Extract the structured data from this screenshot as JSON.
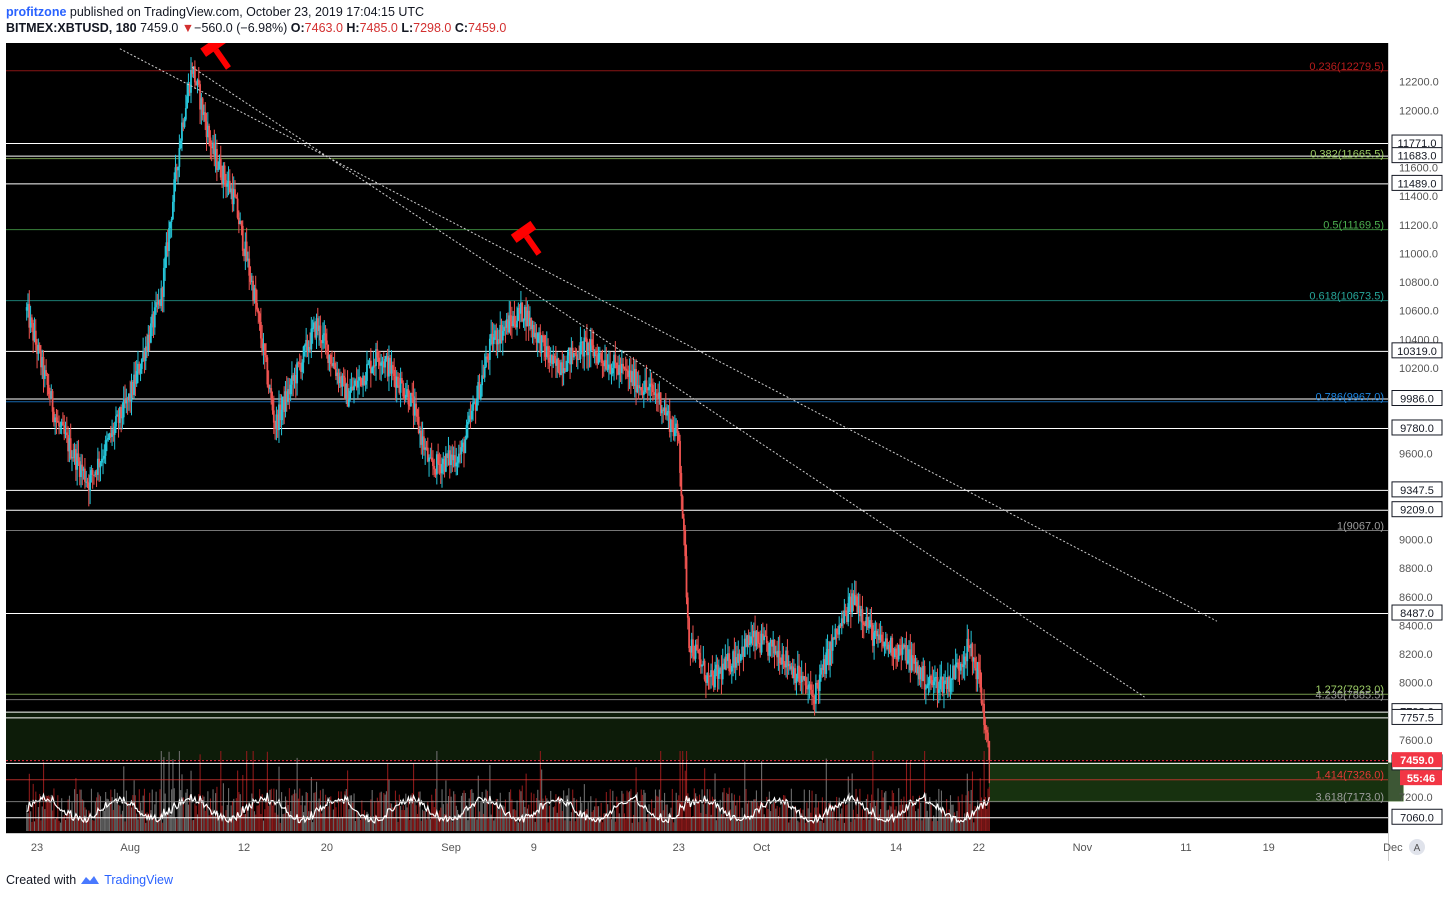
{
  "header": {
    "author": "profitzone",
    "published_text": "published on TradingView.com, October 23, 2019 17:04:15 UTC",
    "symbol": "BITMEX:XBTUSD, 180",
    "last_price": "7459.0",
    "change_arrow": "▼",
    "change": "−560.0 (−6.98%)",
    "o_label": "O:",
    "o_value": "7463.0",
    "h_label": "H:",
    "h_value": "7485.0",
    "l_label": "L:",
    "l_value": "7298.0",
    "c_label": "C:",
    "c_value": "7459.0"
  },
  "footer": {
    "created_text": "Created with",
    "brand": "TradingView"
  },
  "colors": {
    "background": "#000000",
    "up": "#26c6da",
    "down": "#ef5350",
    "volume_up": "#6b6b6b",
    "volume_down": "#8b1a1a",
    "level": "#ffffff",
    "trendline": "#d0d0d0",
    "marker": "#ff0000",
    "target_zone": "#1b3a12",
    "price_label_bg": "#f23645"
  },
  "chart_data": {
    "type": "candlestick",
    "interval": "180",
    "symbol": "BITMEX:XBTUSD",
    "y_ticks": [
      12200,
      12000,
      11800,
      11600,
      11400,
      11200,
      11000,
      10800,
      10600,
      10400,
      10200,
      10000,
      9800,
      9600,
      9400,
      9200,
      9000,
      8800,
      8600,
      8400,
      8200,
      8000,
      7800,
      7600,
      7400,
      7200,
      7000
    ],
    "ylim": [
      6950,
      12470
    ],
    "x_axis_labels": [
      {
        "label": "23",
        "date": "2019-07-23"
      },
      {
        "label": "Aug",
        "date": "2019-08-01"
      },
      {
        "label": "12",
        "date": "2019-08-12"
      },
      {
        "label": "20",
        "date": "2019-08-20"
      },
      {
        "label": "Sep",
        "date": "2019-09-01"
      },
      {
        "label": "9",
        "date": "2019-09-09"
      },
      {
        "label": "23",
        "date": "2019-09-23"
      },
      {
        "label": "Oct",
        "date": "2019-10-01"
      },
      {
        "label": "14",
        "date": "2019-10-14"
      },
      {
        "label": "22",
        "date": "2019-10-22"
      },
      {
        "label": "Nov",
        "date": "2019-11-01"
      },
      {
        "label": "11",
        "date": "2019-11-11"
      },
      {
        "label": "19",
        "date": "2019-11-19"
      },
      {
        "label": "Dec",
        "date": "2019-12-01"
      }
    ],
    "price_path": [
      {
        "date": "2019-07-22",
        "price": 10600
      },
      {
        "date": "2019-07-25",
        "price": 9800
      },
      {
        "date": "2019-07-28",
        "price": 9400
      },
      {
        "date": "2019-08-01",
        "price": 10000
      },
      {
        "date": "2019-08-04",
        "price": 10700
      },
      {
        "date": "2019-08-06",
        "price": 11900
      },
      {
        "date": "2019-08-07",
        "price": 12300
      },
      {
        "date": "2019-08-09",
        "price": 11700
      },
      {
        "date": "2019-08-11",
        "price": 11400
      },
      {
        "date": "2019-08-13",
        "price": 10700
      },
      {
        "date": "2019-08-15",
        "price": 9800
      },
      {
        "date": "2019-08-19",
        "price": 10500
      },
      {
        "date": "2019-08-22",
        "price": 10000
      },
      {
        "date": "2019-08-25",
        "price": 10300
      },
      {
        "date": "2019-08-28",
        "price": 10000
      },
      {
        "date": "2019-08-30",
        "price": 9500
      },
      {
        "date": "2019-09-02",
        "price": 9600
      },
      {
        "date": "2019-09-05",
        "price": 10400
      },
      {
        "date": "2019-09-08",
        "price": 10600
      },
      {
        "date": "2019-09-11",
        "price": 10200
      },
      {
        "date": "2019-09-14",
        "price": 10350
      },
      {
        "date": "2019-09-18",
        "price": 10150
      },
      {
        "date": "2019-09-21",
        "price": 10000
      },
      {
        "date": "2019-09-23",
        "price": 9700
      },
      {
        "date": "2019-09-24",
        "price": 8300
      },
      {
        "date": "2019-09-26",
        "price": 8000
      },
      {
        "date": "2019-09-30",
        "price": 8300
      },
      {
        "date": "2019-10-03",
        "price": 8200
      },
      {
        "date": "2019-10-06",
        "price": 7900
      },
      {
        "date": "2019-10-08",
        "price": 8300
      },
      {
        "date": "2019-10-10",
        "price": 8600
      },
      {
        "date": "2019-10-12",
        "price": 8300
      },
      {
        "date": "2019-10-15",
        "price": 8200
      },
      {
        "date": "2019-10-17",
        "price": 8000
      },
      {
        "date": "2019-10-19",
        "price": 8000
      },
      {
        "date": "2019-10-21",
        "price": 8250
      },
      {
        "date": "2019-10-22",
        "price": 8050
      },
      {
        "date": "2019-10-23",
        "price": 7459
      }
    ],
    "last_price": 7459.0,
    "last_price_label": "7459.0",
    "countdown": "55:46",
    "horizontal_levels": [
      {
        "price": 11771.0,
        "label": "11771.0"
      },
      {
        "price": 11683.0,
        "label": "11683.0"
      },
      {
        "price": 11489.0,
        "label": "11489.0"
      },
      {
        "price": 10319.0,
        "label": "10319.0"
      },
      {
        "price": 9986.0,
        "label": "9986.0"
      },
      {
        "price": 9780.0,
        "label": "9780.0"
      },
      {
        "price": 9347.5,
        "label": "9347.5"
      },
      {
        "price": 9209.0,
        "label": "9209.0"
      },
      {
        "price": 8487.0,
        "label": "8487.0"
      },
      {
        "price": 7798.0,
        "label": "7798.0"
      },
      {
        "price": 7757.5,
        "label": "7757.5"
      },
      {
        "price": 7440.0,
        "label": "7440.0"
      },
      {
        "price": 7060.0,
        "label": "7060.0"
      }
    ],
    "fib_levels": [
      {
        "ratio": "0.236",
        "price": 12279.5,
        "label": "0.236(12279.5)",
        "color": "#b71c1c"
      },
      {
        "ratio": "0.382",
        "price": 11665.5,
        "label": "0.382(11665.5)",
        "color": "#9ccc65"
      },
      {
        "ratio": "0.5",
        "price": 11169.5,
        "label": "0.5(11169.5)",
        "color": "#4caf50"
      },
      {
        "ratio": "0.618",
        "price": 10673.5,
        "label": "0.618(10673.5)",
        "color": "#26a69a"
      },
      {
        "ratio": "0.786",
        "price": 9967.0,
        "label": "0.786(9967.0)",
        "color": "#1e88e5"
      },
      {
        "ratio": "1",
        "price": 9067.0,
        "label": "1(9067.0)",
        "color": "#9e9e9e"
      },
      {
        "ratio": "1.272",
        "price": 7923.0,
        "label": "1.272(7923.0)",
        "color": "#9ccc65"
      },
      {
        "ratio": "4.236",
        "price": 7885.5,
        "label": "4.236(7885.5)",
        "color": "#9e9e9e"
      },
      {
        "ratio": "1.414",
        "price": 7326.0,
        "label": "1.414(7326.0)",
        "color": "#e53935"
      },
      {
        "ratio": "3.618",
        "price": 7173.0,
        "label": "3.618(7173.0)",
        "color": "#9e9e9e"
      }
    ],
    "trendlines": [
      {
        "start": {
          "date": "2019-07-31",
          "price": 12430
        },
        "end": {
          "date": "2019-11-14",
          "price": 8430
        }
      },
      {
        "start": {
          "date": "2019-08-07",
          "price": 12300
        },
        "end": {
          "date": "2019-11-07",
          "price": 7900
        }
      }
    ],
    "rejection_markers": [
      {
        "date": "2019-08-09",
        "price": 12450
      },
      {
        "date": "2019-09-08",
        "price": 11150
      }
    ],
    "target_zone": {
      "price_top": 7440.0,
      "price_bottom": 7173.0,
      "start_date": "2019-10-23",
      "end_date": "2019-12-02"
    },
    "volume_overlay": true
  }
}
